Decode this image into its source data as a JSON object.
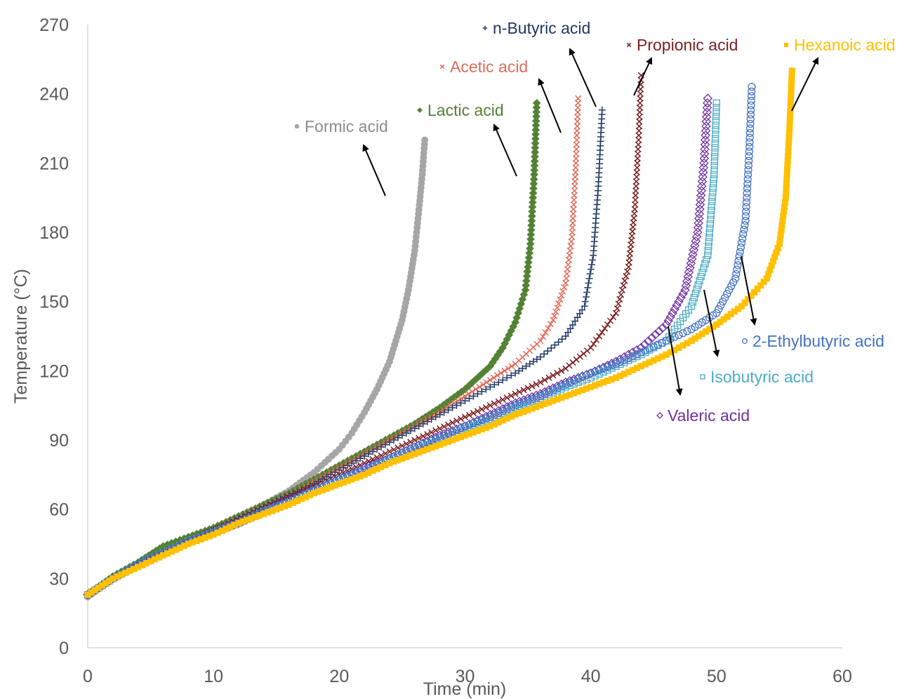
{
  "chart_data": {
    "type": "scatter",
    "title": "",
    "xlabel": "Time (min)",
    "ylabel": "Temperature (°C)",
    "xlim": [
      0,
      60
    ],
    "ylim": [
      0,
      270
    ],
    "xticks": [
      "0",
      "10",
      "20",
      "30",
      "40",
      "50",
      "60"
    ],
    "yticks": [
      "0",
      "30",
      "60",
      "90",
      "120",
      "150",
      "180",
      "210",
      "240",
      "270"
    ],
    "grid": false,
    "legend": "none (direct labels with arrows)",
    "series": [
      {
        "name": "Formic acid",
        "color": "#A6A6A6",
        "marker": "circle-filled",
        "x": [
          0,
          2,
          4,
          6,
          8,
          10,
          12,
          14,
          16,
          18,
          20,
          21,
          22,
          23,
          24,
          25,
          25.5,
          26,
          26.3,
          26.6,
          26.8
        ],
        "y": [
          22,
          30,
          36,
          41,
          46,
          51,
          56,
          62,
          68,
          76,
          86,
          93,
          102,
          112,
          124,
          142,
          155,
          172,
          188,
          205,
          220
        ]
      },
      {
        "name": "Lactic acid",
        "color": "#548235",
        "marker": "diamond-filled",
        "x": [
          0,
          2,
          4,
          6,
          8,
          10,
          12,
          14,
          16,
          18,
          20,
          22,
          24,
          26,
          28,
          30,
          32,
          33,
          34,
          34.8,
          35.2,
          35.5,
          35.7
        ],
        "y": [
          23,
          31,
          37,
          44,
          48,
          52,
          57,
          62,
          67,
          73,
          79,
          85,
          91,
          97,
          104,
          112,
          122,
          130,
          141,
          155,
          175,
          205,
          236
        ]
      },
      {
        "name": "Acetic acid",
        "color": "#E06C5A",
        "marker": "x",
        "x": [
          0,
          2,
          4,
          6,
          8,
          10,
          12,
          14,
          16,
          18,
          20,
          22,
          24,
          26,
          28,
          30,
          32,
          34,
          36,
          37,
          38,
          38.5,
          38.8,
          39
        ],
        "y": [
          23,
          30,
          36,
          41,
          46,
          51,
          56,
          61,
          66,
          72,
          78,
          84,
          90,
          96,
          102,
          109,
          116,
          123,
          133,
          142,
          158,
          178,
          208,
          238
        ]
      },
      {
        "name": "n-Butyric acid",
        "color": "#1F3864",
        "marker": "plus",
        "x": [
          0,
          2,
          4,
          6,
          8,
          10,
          12,
          14,
          16,
          18,
          20,
          22,
          24,
          26,
          28,
          30,
          32,
          34,
          36,
          38,
          39.5,
          40.2,
          40.6,
          40.9
        ],
        "y": [
          23,
          30,
          36,
          41,
          46,
          51,
          56,
          61,
          66,
          71,
          77,
          83,
          89,
          95,
          101,
          107,
          113,
          119,
          126,
          135,
          148,
          170,
          200,
          233
        ]
      },
      {
        "name": "Propionic acid",
        "color": "#7B1F1F",
        "marker": "x",
        "x": [
          0,
          2,
          4,
          6,
          8,
          10,
          12,
          14,
          16,
          18,
          20,
          22,
          24,
          26,
          28,
          30,
          32,
          34,
          36,
          38,
          40,
          42,
          43,
          43.5,
          43.8,
          44
        ],
        "y": [
          23,
          30,
          36,
          41,
          46,
          51,
          55,
          60,
          65,
          70,
          75,
          80,
          85,
          90,
          95,
          100,
          105,
          110,
          115,
          121,
          130,
          145,
          165,
          190,
          220,
          248
        ]
      },
      {
        "name": "Valeric acid",
        "color": "#7030A0",
        "marker": "diamond-open",
        "x": [
          0,
          2,
          4,
          6,
          8,
          10,
          12,
          14,
          16,
          18,
          20,
          22,
          24,
          26,
          28,
          30,
          32,
          34,
          36,
          38,
          40,
          42,
          44,
          46,
          47.5,
          48.5,
          49,
          49.3
        ],
        "y": [
          23,
          30,
          36,
          41,
          46,
          50,
          54,
          59,
          64,
          68,
          73,
          78,
          82,
          87,
          92,
          96,
          101,
          106,
          110,
          115,
          119,
          124,
          130,
          140,
          155,
          180,
          210,
          238
        ]
      },
      {
        "name": "Isobutyric acid",
        "color": "#4BACC6",
        "marker": "square-open",
        "x": [
          0,
          2,
          4,
          6,
          8,
          10,
          12,
          14,
          16,
          18,
          20,
          22,
          24,
          26,
          28,
          30,
          32,
          34,
          36,
          38,
          40,
          42,
          44,
          46,
          48,
          49.3,
          49.8,
          50
        ],
        "y": [
          23,
          30,
          36,
          41,
          46,
          50,
          54,
          59,
          63,
          68,
          72,
          77,
          81,
          86,
          90,
          95,
          99,
          104,
          108,
          113,
          117,
          122,
          127,
          133,
          148,
          170,
          205,
          236
        ]
      },
      {
        "name": "2-Ethylbutyric acid",
        "color": "#4472C4",
        "marker": "circle-open",
        "x": [
          0,
          2,
          4,
          6,
          8,
          10,
          12,
          14,
          16,
          18,
          20,
          22,
          24,
          26,
          28,
          30,
          32,
          34,
          36,
          38,
          40,
          42,
          44,
          46,
          48,
          50,
          51.5,
          52.3,
          52.6,
          52.8
        ],
        "y": [
          23,
          30,
          36,
          41,
          46,
          50,
          54,
          59,
          63,
          68,
          73,
          77,
          82,
          87,
          91,
          96,
          100,
          105,
          109,
          114,
          119,
          123,
          128,
          133,
          138,
          145,
          160,
          185,
          215,
          243
        ]
      },
      {
        "name": "Hexanoic acid",
        "color": "#FFC000",
        "marker": "square-filled",
        "x": [
          0,
          2,
          4,
          6,
          8,
          10,
          12,
          14,
          16,
          18,
          20,
          22,
          24,
          26,
          28,
          30,
          32,
          34,
          36,
          38,
          40,
          42,
          44,
          46,
          48,
          50,
          52,
          54,
          55,
          55.5,
          55.8,
          56
        ],
        "y": [
          23,
          30,
          35,
          40,
          45,
          49,
          54,
          58,
          62,
          67,
          71,
          75,
          80,
          84,
          88,
          92,
          96,
          101,
          105,
          109,
          113,
          117,
          122,
          127,
          133,
          140,
          148,
          160,
          175,
          195,
          225,
          250
        ]
      }
    ]
  }
}
